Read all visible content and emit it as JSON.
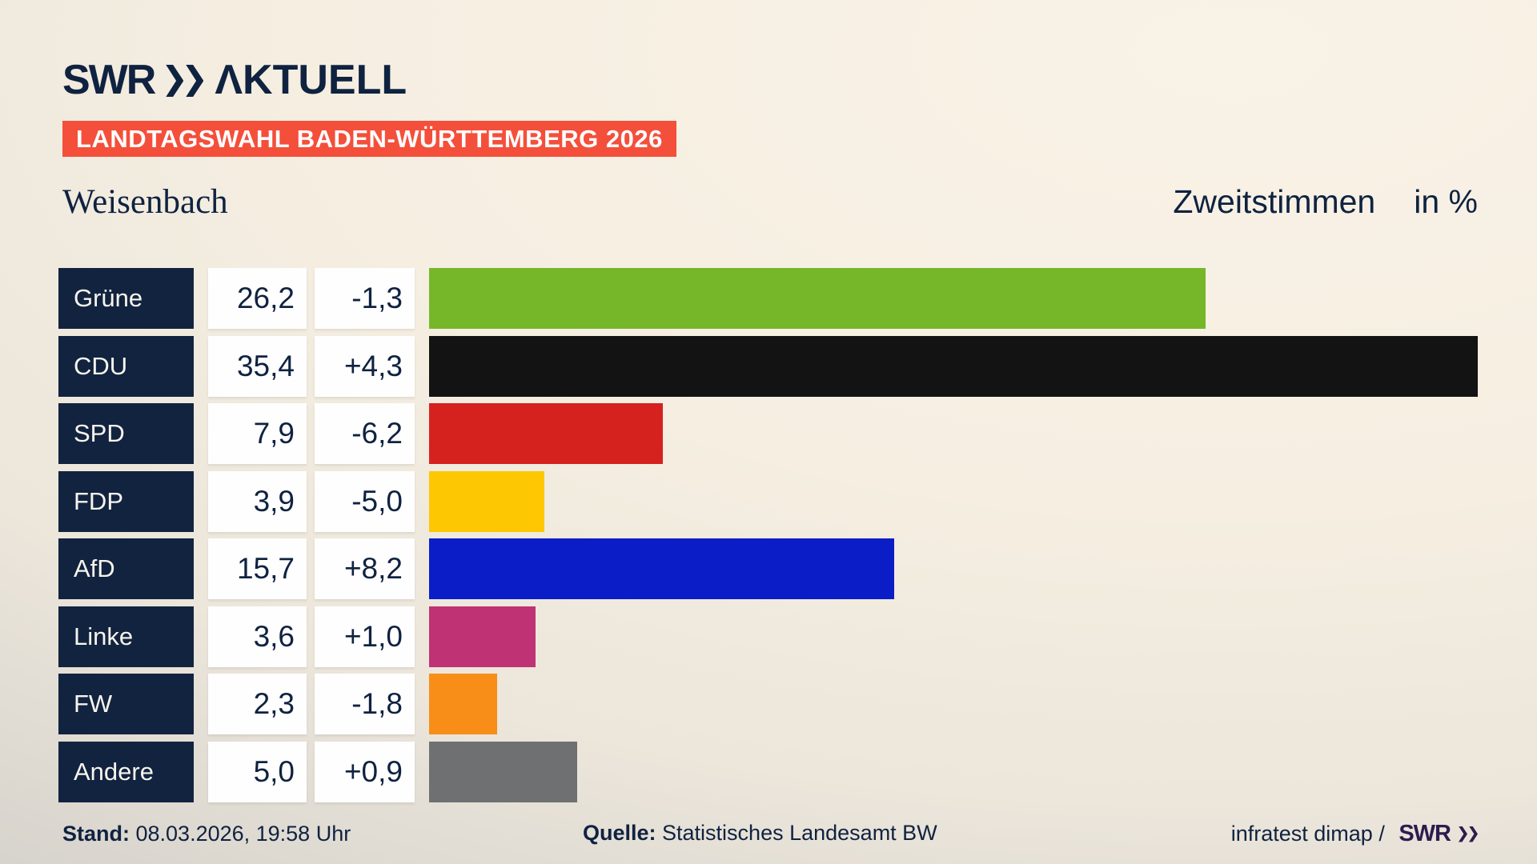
{
  "header": {
    "brand": "SWR",
    "product": "ΛKTUELL",
    "banner": "LANDTAGSWAHL BADEN-WÜRTTEMBERG 2026"
  },
  "title": {
    "location": "Weisenbach",
    "measure": "Zweitstimmen",
    "unit": "in %"
  },
  "chart_data": {
    "type": "bar",
    "orientation": "horizontal",
    "title": "Weisenbach – Zweitstimmen in %",
    "categories": [
      "Grüne",
      "CDU",
      "SPD",
      "FDP",
      "AfD",
      "Linke",
      "FW",
      "Andere"
    ],
    "values": [
      26.2,
      35.4,
      7.9,
      3.9,
      15.7,
      3.6,
      2.3,
      5.0
    ],
    "changes": [
      -1.3,
      4.3,
      -6.2,
      -5.0,
      8.2,
      1.0,
      -1.8,
      0.9
    ],
    "value_labels": [
      "26,2",
      "35,4",
      "7,9",
      "3,9",
      "15,7",
      "3,6",
      "2,3",
      "5,0"
    ],
    "change_labels": [
      "-1,3",
      "+4,3",
      "-6,2",
      "-5,0",
      "+8,2",
      "+1,0",
      "-1,8",
      "+0,9"
    ],
    "bar_colors": [
      "#76b72a",
      "#131313",
      "#d5221f",
      "#fdc702",
      "#0b1dc6",
      "#bf3273",
      "#f88d18",
      "#6e7072"
    ],
    "xlim": [
      0,
      35.4
    ],
    "legend": "none",
    "grid": false
  },
  "footer": {
    "stand_label": "Stand:",
    "stand_value": " 08.03.2026, 19:58 Uhr",
    "source_label": "Quelle:",
    "source_value": " Statistisches Landesamt BW",
    "attribution": "infratest dimap / ",
    "attribution_brand": "SWR"
  },
  "colors": {
    "background_light": "#f9f2e6",
    "background_dark": "#c5c2bd",
    "navy": "#0f2240",
    "party_box": "#12233f",
    "banner_red": "#f44f3b",
    "box_white": "#fefefe",
    "brand_footer_purple": "#2b1c4e"
  }
}
